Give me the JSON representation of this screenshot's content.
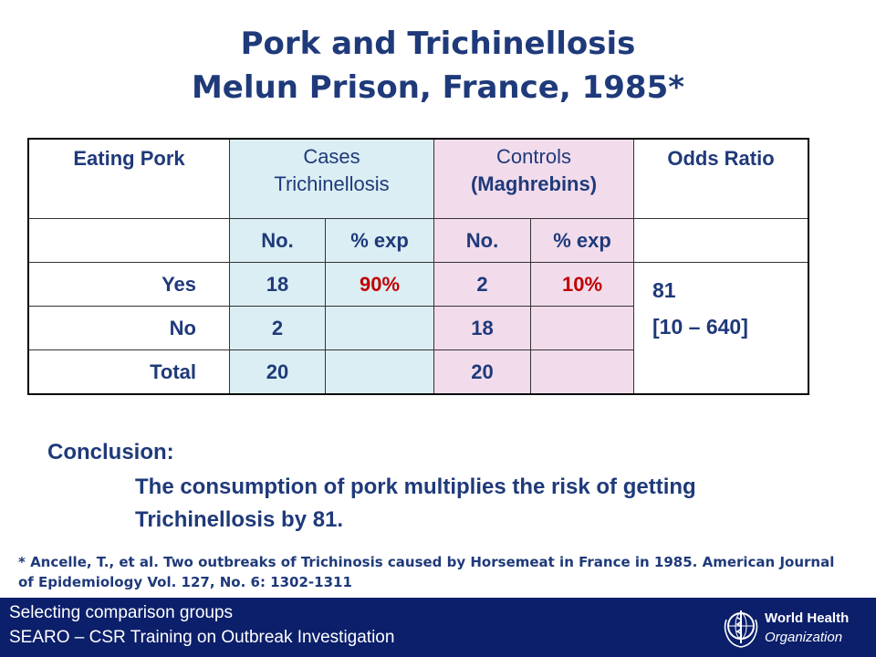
{
  "title": {
    "line1": "Pork and Trichinellosis",
    "line2": "Melun Prison, France, 1985*"
  },
  "table": {
    "header": {
      "eating_pork": "Eating Pork",
      "cases_line1": "Cases",
      "cases_line2": "Trichinellosis",
      "controls_line1": "Controls",
      "controls_line2": "(Maghrebins)",
      "odds_ratio": "Odds Ratio"
    },
    "subheader": {
      "cases_no": "No.",
      "cases_pct": "% exp",
      "controls_no": "No.",
      "controls_pct": "% exp"
    },
    "rows": [
      {
        "label": "Yes",
        "cases_no": "18",
        "cases_pct": "90%",
        "controls_no": "2",
        "controls_pct": "10%"
      },
      {
        "label": "No",
        "cases_no": "2",
        "cases_pct": "",
        "controls_no": "18",
        "controls_pct": ""
      },
      {
        "label": "Total",
        "cases_no": "20",
        "cases_pct": "",
        "controls_no": "20",
        "controls_pct": ""
      }
    ],
    "odds_ratio_value": "81",
    "odds_ratio_ci": "[10 – 640]"
  },
  "conclusion": {
    "heading": "Conclusion:",
    "text": "The consumption of pork multiplies the risk of getting Trichinellosis by 81."
  },
  "reference": "* Ancelle, T., et al. Two outbreaks of Trichinosis caused by Horsemeat in France in 1985. American Journal of Epidemiology Vol. 127, No. 6: 1302-1311",
  "footer": {
    "line1": "Selecting comparison groups",
    "line2": "SEARO – CSR Training on Outbreak Investigation",
    "logo_line1": "World Health",
    "logo_line2": "Organization",
    "logo_icon": "who-emblem-icon"
  },
  "colors": {
    "title": "#1f3a7a",
    "cases_bg": "#dbeef3",
    "controls_bg": "#f2dcec",
    "highlight": "#c00000",
    "footer_bg": "#0b1f6b"
  }
}
